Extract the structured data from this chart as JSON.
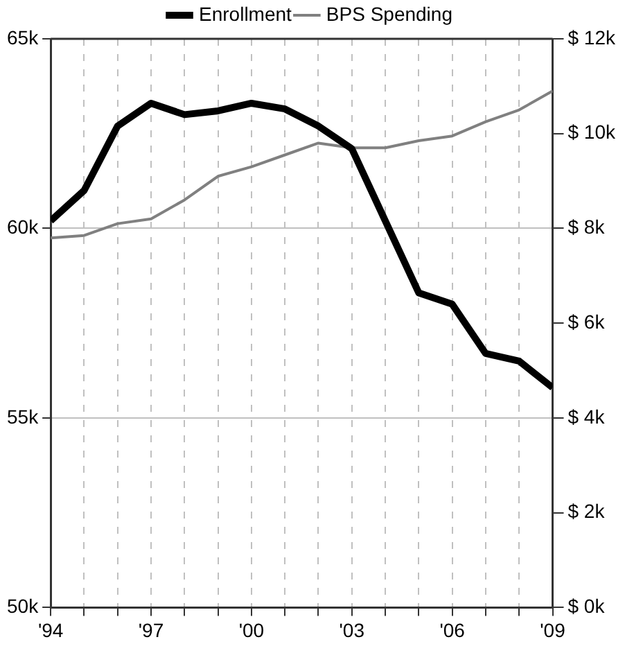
{
  "chart_data": {
    "type": "line",
    "x": [
      1994,
      1995,
      1996,
      1997,
      1998,
      1999,
      2000,
      2001,
      2002,
      2003,
      2004,
      2005,
      2006,
      2007,
      2008,
      2009
    ],
    "xlim": [
      1994,
      2009
    ],
    "xticks": [
      {
        "value": 1994,
        "label": "'94"
      },
      {
        "value": 1995,
        "label": null
      },
      {
        "value": 1996,
        "label": null
      },
      {
        "value": 1997,
        "label": "'97"
      },
      {
        "value": 1998,
        "label": null
      },
      {
        "value": 1999,
        "label": null
      },
      {
        "value": 2000,
        "label": "'00"
      },
      {
        "value": 2001,
        "label": null
      },
      {
        "value": 2002,
        "label": null
      },
      {
        "value": 2003,
        "label": "'03"
      },
      {
        "value": 2004,
        "label": null
      },
      {
        "value": 2005,
        "label": null
      },
      {
        "value": 2006,
        "label": "'06"
      },
      {
        "value": 2007,
        "label": null
      },
      {
        "value": 2008,
        "label": null
      },
      {
        "value": 2009,
        "label": "'09"
      }
    ],
    "ylim": [
      50000,
      65000
    ],
    "yticks": [
      {
        "value": 50000,
        "label": "50k"
      },
      {
        "value": 55000,
        "label": "55k"
      },
      {
        "value": 60000,
        "label": "60k"
      },
      {
        "value": 65000,
        "label": "65k"
      }
    ],
    "y2lim": [
      0,
      12000
    ],
    "y2ticks": [
      {
        "value": 0,
        "label": "$ 0k"
      },
      {
        "value": 2000,
        "label": "$ 2k"
      },
      {
        "value": 4000,
        "label": "$ 4k"
      },
      {
        "value": 6000,
        "label": "$ 6k"
      },
      {
        "value": 8000,
        "label": "$ 8k"
      },
      {
        "value": 10000,
        "label": "$ 10k"
      },
      {
        "value": 12000,
        "label": "$ 12k"
      }
    ],
    "series": [
      {
        "name": "Enrollment",
        "color": "#000000",
        "values": [
          60200,
          61000,
          62700,
          63300,
          63000,
          63100,
          63300,
          63150,
          62700,
          62100,
          60200,
          58300,
          58000,
          56700,
          56500,
          55800
        ]
      },
      {
        "name": "BPS Spending",
        "color": "#808080",
        "axis": "y2",
        "values": [
          7800,
          7850,
          8100,
          8200,
          8600,
          9100,
          9300,
          9550,
          9800,
          9700,
          9700,
          9850,
          9950,
          10250,
          10500,
          10900
        ]
      }
    ],
    "grid": true,
    "legend": "top",
    "marker": "none",
    "line_style": "solid"
  }
}
